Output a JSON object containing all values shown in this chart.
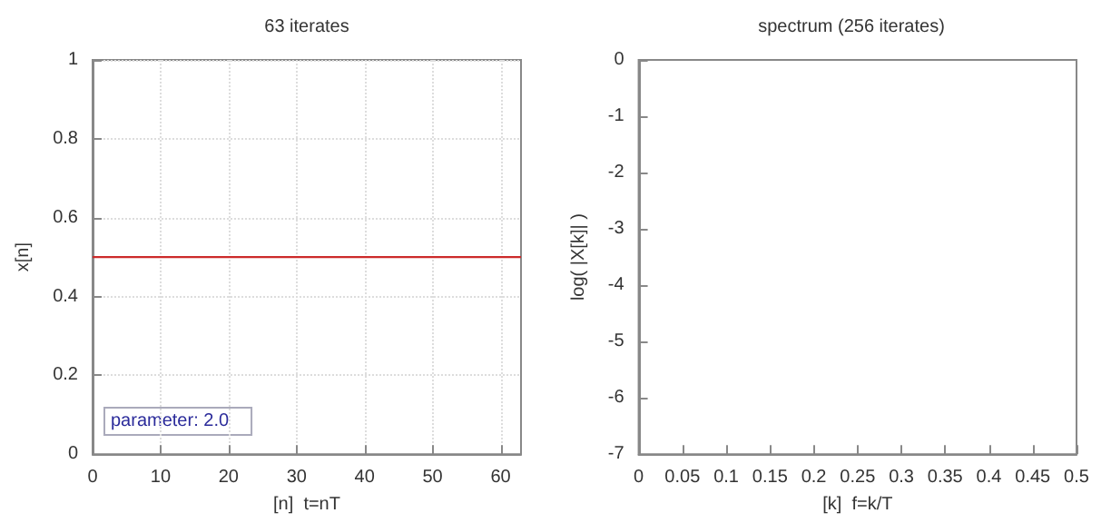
{
  "chart_data": [
    {
      "type": "line",
      "title": "63 iterates",
      "xlabel": "[n]  t=nT",
      "ylabel": "x[n]",
      "x": [
        0,
        63
      ],
      "series": [
        {
          "color": "#cc2a2a",
          "values": [
            0.5,
            0.5
          ]
        }
      ],
      "xlim": [
        0,
        63
      ],
      "xticks": [
        0,
        10,
        20,
        30,
        40,
        50,
        60
      ],
      "ylim": [
        0,
        1
      ],
      "yticks": [
        0,
        0.2,
        0.4,
        0.6,
        0.8,
        1
      ],
      "grid": true,
      "marker": "none",
      "line_style": "solid",
      "annotations": [
        "parameter: 2.0"
      ]
    },
    {
      "type": "line",
      "title": "spectrum (256 iterates)",
      "xlabel": "[k]  f=k/T",
      "ylabel": "log( |X[k]| )",
      "xlim": [
        0,
        0.5
      ],
      "xticks": [
        0,
        0.05,
        0.1,
        0.15,
        0.2,
        0.25,
        0.3,
        0.35,
        0.4,
        0.45,
        0.5
      ],
      "ylim": [
        -7,
        0
      ],
      "yticks": [
        -7,
        -6,
        -5,
        -4,
        -3,
        -2,
        -1,
        0
      ],
      "grid": false
    }
  ]
}
